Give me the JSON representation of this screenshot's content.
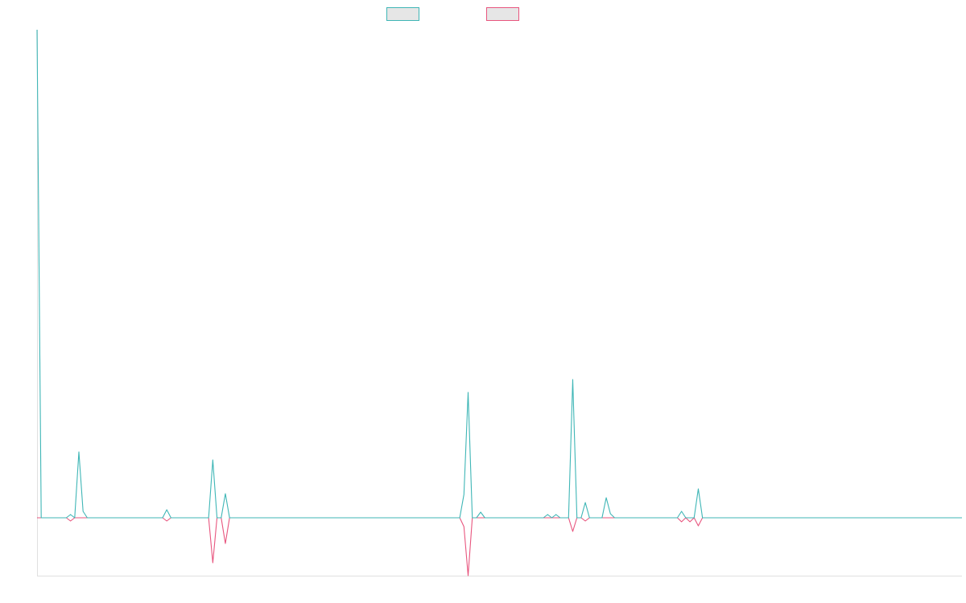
{
  "chart_data": {
    "type": "line",
    "legend": "top",
    "legend_fill": "#e6e6e6",
    "ylim": [
      -7.2,
      60.7
    ],
    "series": [
      {
        "color": "#3fb6b6",
        "values": [
          60.7,
          0,
          0,
          0,
          0,
          0,
          0,
          0,
          0.4,
          0,
          8.2,
          0.8,
          0,
          0,
          0,
          0,
          0,
          0,
          0,
          0,
          0,
          0,
          0,
          0,
          0,
          0,
          0,
          0,
          0,
          0,
          0,
          1.0,
          0,
          0,
          0,
          0,
          0,
          0,
          0,
          0,
          0,
          0,
          7.2,
          0,
          0,
          3.0,
          0,
          0,
          0,
          0,
          0,
          0,
          0,
          0,
          0,
          0,
          0,
          0,
          0,
          0,
          0,
          0,
          0,
          0,
          0,
          0,
          0,
          0,
          0,
          0,
          0,
          0,
          0,
          0,
          0,
          0,
          0,
          0,
          0,
          0,
          0,
          0,
          0,
          0,
          0,
          0,
          0,
          0,
          0,
          0,
          0,
          0,
          0,
          0,
          0,
          0,
          0,
          0,
          0,
          0,
          0,
          0,
          2.9,
          15.6,
          0,
          0,
          0.7,
          0,
          0,
          0,
          0,
          0,
          0,
          0,
          0,
          0,
          0,
          0,
          0,
          0,
          0,
          0,
          0.4,
          0,
          0.4,
          0,
          0,
          0,
          17.2,
          0,
          0,
          1.9,
          0,
          0,
          0,
          0,
          2.5,
          0.5,
          0,
          0,
          0,
          0,
          0,
          0,
          0,
          0,
          0,
          0,
          0,
          0,
          0,
          0,
          0,
          0,
          0.8,
          0,
          0,
          0,
          3.6,
          0,
          0,
          0,
          0,
          0,
          0,
          0,
          0,
          0,
          0,
          0,
          0,
          0,
          0,
          0,
          0,
          0,
          0,
          0,
          0,
          0,
          0,
          0,
          0,
          0,
          0,
          0,
          0,
          0,
          0,
          0,
          0,
          0,
          0,
          0,
          0,
          0,
          0,
          0,
          0,
          0,
          0,
          0,
          0,
          0,
          0,
          0,
          0,
          0,
          0,
          0,
          0,
          0,
          0,
          0,
          0,
          0,
          0,
          0,
          0,
          0,
          0,
          0
        ]
      },
      {
        "color": "#e8557e",
        "values": [
          0,
          0,
          0,
          0,
          0,
          0,
          0,
          0,
          -0.4,
          0,
          0,
          0,
          0,
          0,
          0,
          0,
          0,
          0,
          0,
          0,
          0,
          0,
          0,
          0,
          0,
          0,
          0,
          0,
          0,
          0,
          0,
          -0.4,
          0,
          0,
          0,
          0,
          0,
          0,
          0,
          0,
          0,
          0,
          -5.6,
          0,
          0,
          -3.2,
          0,
          0,
          0,
          0,
          0,
          0,
          0,
          0,
          0,
          0,
          0,
          0,
          0,
          0,
          0,
          0,
          0,
          0,
          0,
          0,
          0,
          0,
          0,
          0,
          0,
          0,
          0,
          0,
          0,
          0,
          0,
          0,
          0,
          0,
          0,
          0,
          0,
          0,
          0,
          0,
          0,
          0,
          0,
          0,
          0,
          0,
          0,
          0,
          0,
          0,
          0,
          0,
          0,
          0,
          0,
          0,
          -1.1,
          -7.2,
          0,
          0,
          0,
          0,
          0,
          0,
          0,
          0,
          0,
          0,
          0,
          0,
          0,
          0,
          0,
          0,
          0,
          0,
          0,
          0,
          0,
          0,
          0,
          0,
          -1.7,
          0,
          0,
          -0.4,
          0,
          0,
          0,
          0,
          0,
          0,
          0,
          0,
          0,
          0,
          0,
          0,
          0,
          0,
          0,
          0,
          0,
          0,
          0,
          0,
          0,
          0,
          -0.5,
          0,
          -0.5,
          0,
          -1.0,
          0,
          0,
          0,
          0,
          0,
          0,
          0,
          0,
          0,
          0,
          0,
          0,
          0,
          0,
          0,
          0,
          0,
          0,
          0,
          0,
          0,
          0,
          0,
          0,
          0,
          0,
          0,
          0,
          0,
          0,
          0,
          0,
          0,
          0,
          0,
          0,
          0,
          0,
          0,
          0,
          0,
          0,
          0,
          0,
          0,
          0,
          0,
          0,
          0,
          0,
          0,
          0,
          0,
          0,
          0,
          0,
          0,
          0,
          0,
          0,
          0,
          0,
          0
        ]
      }
    ]
  }
}
